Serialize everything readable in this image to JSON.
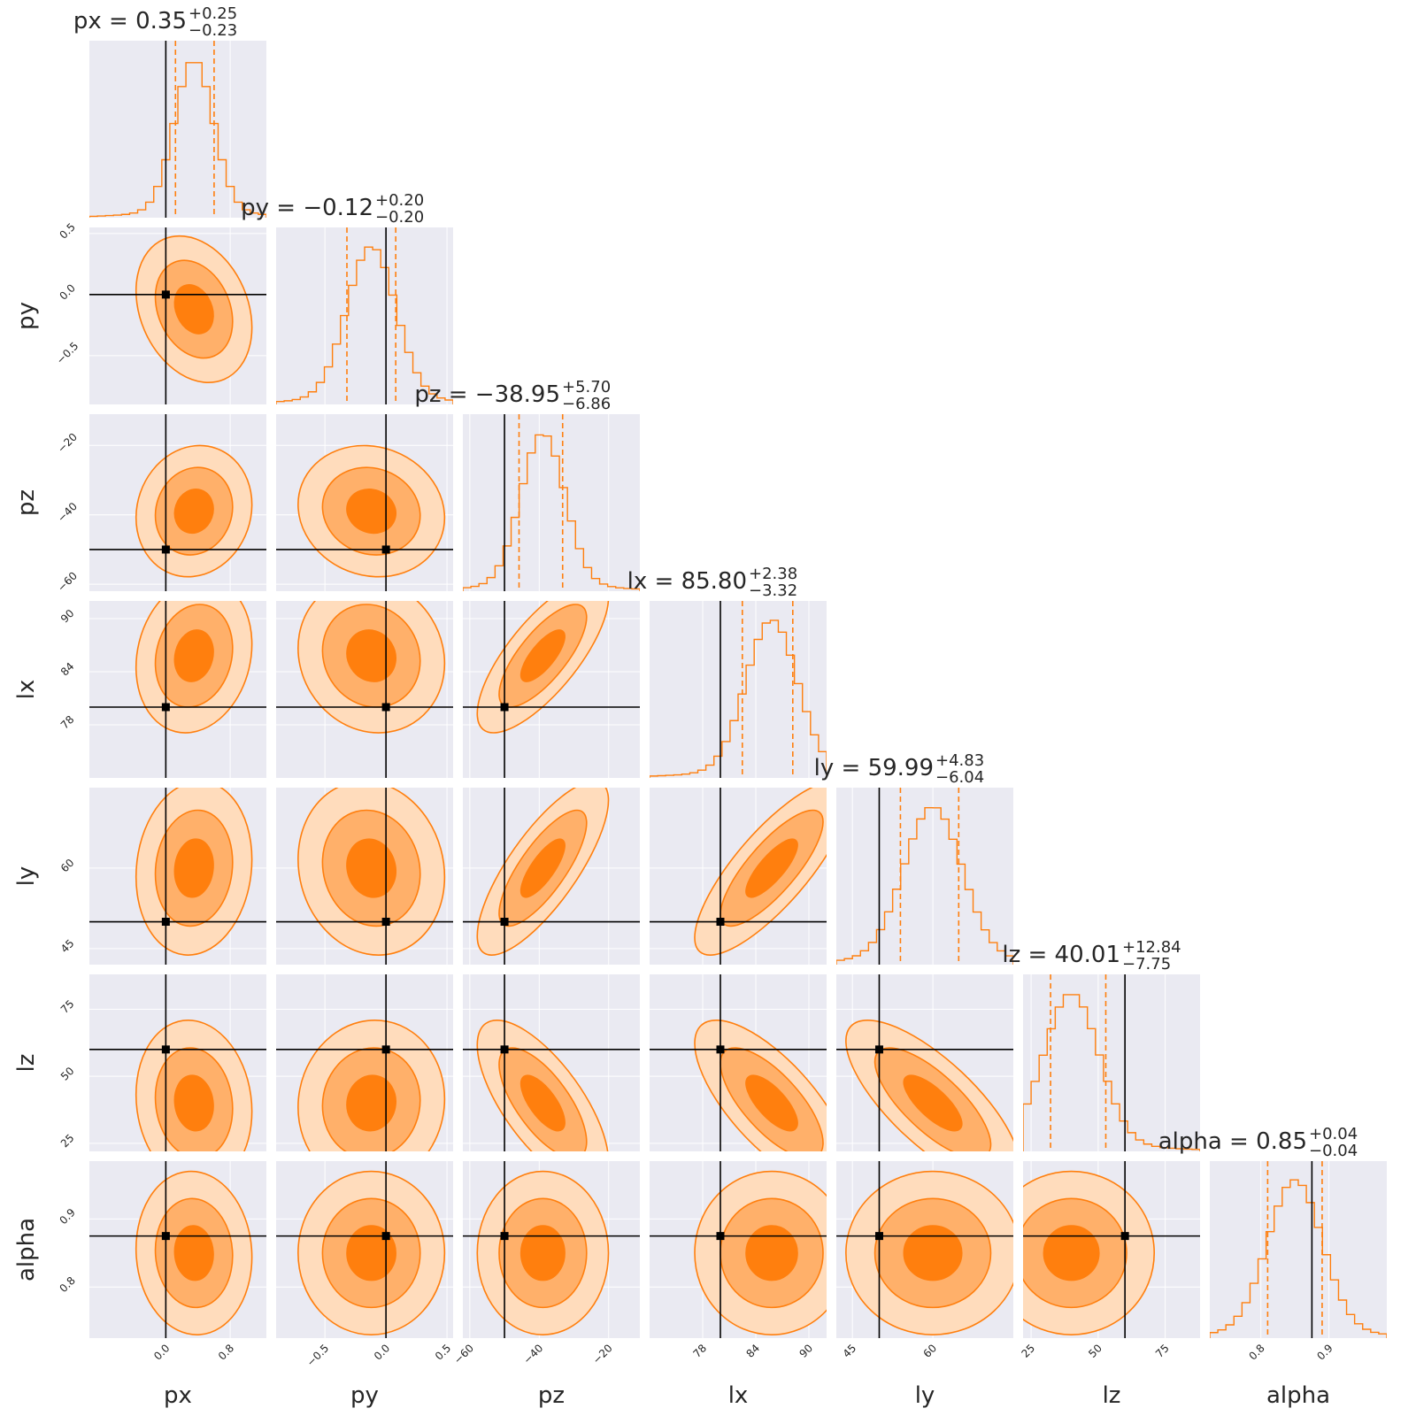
{
  "chart_data": {
    "type": "corner",
    "parameters": [
      "px",
      "py",
      "pz",
      "lx",
      "ly",
      "lz",
      "alpha"
    ],
    "titles": [
      {
        "param": "px",
        "text": "px = 0.35",
        "plus": "+0.25",
        "minus": "−0.23"
      },
      {
        "param": "py",
        "text": "py = −0.12",
        "plus": "+0.20",
        "minus": "−0.20"
      },
      {
        "param": "pz",
        "text": "pz = −38.95",
        "plus": "+5.70",
        "minus": "−6.86"
      },
      {
        "param": "lx",
        "text": "lx = 85.80",
        "plus": "+2.38",
        "minus": "−3.32"
      },
      {
        "param": "ly",
        "text": "ly = 59.99",
        "plus": "+4.83",
        "minus": "−6.04"
      },
      {
        "param": "lz",
        "text": "lz = 40.01",
        "plus": "+12.84",
        "minus": "−7.75"
      },
      {
        "param": "alpha",
        "text": "alpha = 0.85",
        "plus": "+0.04",
        "minus": "−0.04"
      }
    ],
    "ranges": [
      [
        -0.95,
        1.25
      ],
      [
        -0.9,
        0.55
      ],
      [
        -62,
        -11
      ],
      [
        72,
        92
      ],
      [
        42,
        75
      ],
      [
        22,
        88
      ],
      [
        0.725,
        0.985
      ]
    ],
    "median": [
      0.35,
      -0.12,
      -38.95,
      85.8,
      59.99,
      40.01,
      0.85
    ],
    "q_low": [
      0.12,
      -0.32,
      -45.81,
      82.48,
      53.95,
      32.26,
      0.81
    ],
    "q_high": [
      0.6,
      0.08,
      -33.25,
      88.18,
      64.82,
      52.85,
      0.89
    ],
    "truths": [
      0.0,
      0.0,
      -50.0,
      80.0,
      50.0,
      60.0,
      0.875
    ],
    "stdev": [
      0.24,
      0.2,
      6.3,
      2.9,
      5.4,
      10.3,
      0.04
    ],
    "corr": [
      [
        1.0,
        -0.25,
        0.1,
        0.15,
        0.1,
        -0.1,
        -0.05
      ],
      [
        -0.25,
        1.0,
        -0.1,
        -0.1,
        -0.1,
        0.05,
        0.0
      ],
      [
        0.1,
        -0.1,
        1.0,
        0.75,
        0.78,
        -0.7,
        0.0
      ],
      [
        0.15,
        -0.1,
        0.75,
        1.0,
        0.8,
        -0.72,
        0.0
      ],
      [
        0.1,
        -0.1,
        0.78,
        0.8,
        1.0,
        -0.75,
        0.0
      ],
      [
        -0.1,
        0.05,
        -0.7,
        -0.72,
        -0.75,
        1.0,
        0.0
      ],
      [
        -0.05,
        0.0,
        0.0,
        0.0,
        0.0,
        0.0,
        1.0
      ]
    ],
    "xticks": [
      {
        "v": [
          0.0,
          0.8
        ],
        "labels": [
          "0.0",
          "0.8"
        ]
      },
      {
        "v": [
          -0.5,
          0.0,
          0.5
        ],
        "labels": [
          "−0.5",
          "0.0",
          "0.5"
        ]
      },
      {
        "v": [
          -60,
          -40,
          -20
        ],
        "labels": [
          "−60",
          "−40",
          "−20"
        ]
      },
      {
        "v": [
          78,
          84,
          90
        ],
        "labels": [
          "78",
          "84",
          "90"
        ]
      },
      {
        "v": [
          45,
          60
        ],
        "labels": [
          "45",
          "60"
        ]
      },
      {
        "v": [
          25,
          50,
          75
        ],
        "labels": [
          "25",
          "50",
          "75"
        ]
      },
      {
        "v": [
          0.8,
          0.9
        ],
        "labels": [
          "0.8",
          "0.9"
        ]
      }
    ],
    "yticks": [
      {
        "v": [],
        "labels": []
      },
      {
        "v": [
          0.5,
          0.0,
          -0.5
        ],
        "labels": [
          "0.5",
          "0.0",
          "−0.5"
        ]
      },
      {
        "v": [
          -20,
          -40,
          -60
        ],
        "labels": [
          "−20",
          "−40",
          "−60"
        ]
      },
      {
        "v": [
          90,
          84,
          78
        ],
        "labels": [
          "90",
          "84",
          "78"
        ]
      },
      {
        "v": [
          60,
          45
        ],
        "labels": [
          "60",
          "45"
        ]
      },
      {
        "v": [
          75,
          50,
          25
        ],
        "labels": [
          "75",
          "50",
          "25"
        ]
      },
      {
        "v": [
          0.9,
          0.8
        ],
        "labels": [
          "0.9",
          "0.8"
        ]
      }
    ],
    "colors": {
      "contour": "#ff7f0e",
      "fill_1": "#ff7f0e",
      "fill_2": "#ffb06a",
      "fill_3": "#ffdcbc",
      "truth": "#000000",
      "panel_bg": "#eaeaf2",
      "grid": "#ffffff"
    },
    "grid": true
  }
}
